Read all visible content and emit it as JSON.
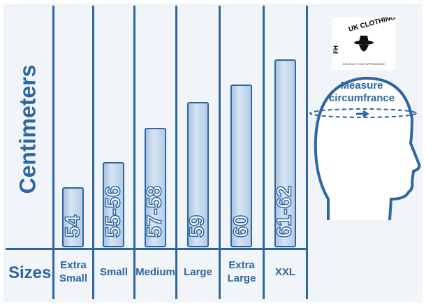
{
  "chart_data": {
    "type": "bar",
    "ylabel": "Centimeters",
    "xlabel": "Sizes",
    "categories": [
      "Extra Small",
      "Small",
      "Medium",
      "Large",
      "Extra Large",
      "XXL"
    ],
    "values": [
      54,
      55.5,
      57.5,
      59,
      60,
      61.5
    ],
    "value_labels": [
      "54",
      "55-56",
      "57-58",
      "59",
      "60",
      "61-62"
    ],
    "colors": {
      "primary": "#2d66a0",
      "bar_fill": "#c6d8ee",
      "background": "#f1f5fa"
    }
  },
  "logo": {
    "text": "FH UK CLOTHING",
    "tagline": "ENHANCE YOUR APPEARANCE"
  },
  "illustration": {
    "line1": "Measure",
    "line2": "circumfrance"
  }
}
